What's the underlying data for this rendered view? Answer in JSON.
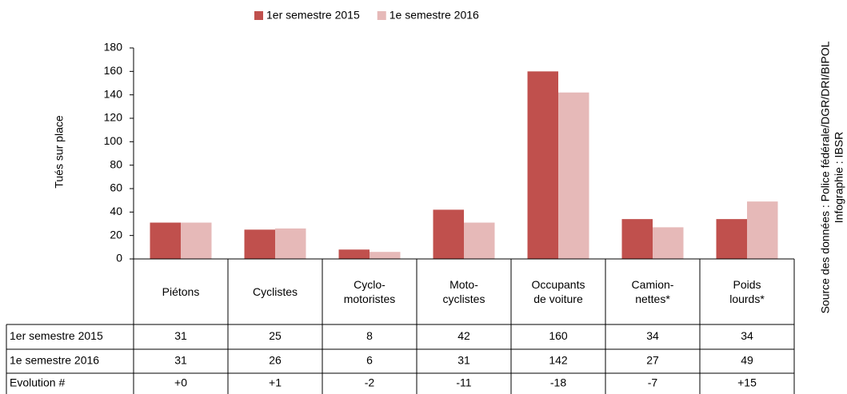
{
  "chart_data": {
    "type": "bar",
    "legend": "top",
    "grid": false,
    "ylabel": "Tués sur place",
    "source": "Source des données : Police fédérale/DGR/DRI/BIPOL",
    "credit": "Infographie : IBSR",
    "categories": [
      "Piétons",
      "Cyclistes",
      "Cyclo-\nmotoristes",
      "Moto-\ncyclistes",
      "Occupants\nde voiture",
      "Camion-\nnettes*",
      "Poids\nlourds*"
    ],
    "series": [
      {
        "name": "1er semestre 2015",
        "color": "#c0504d",
        "values": [
          31,
          25,
          8,
          42,
          160,
          34,
          34
        ]
      },
      {
        "name": "1e semestre 2016",
        "color": "#e6b9b8",
        "values": [
          31,
          26,
          6,
          31,
          142,
          27,
          49
        ]
      }
    ],
    "evolution": {
      "label": "Evolution #",
      "values": [
        "+0",
        "+1",
        "-2",
        "-11",
        "-18",
        "-7",
        "+15"
      ]
    },
    "ylim": [
      0,
      180
    ],
    "yticks": [
      0,
      20,
      40,
      60,
      80,
      100,
      120,
      140,
      160,
      180
    ]
  }
}
